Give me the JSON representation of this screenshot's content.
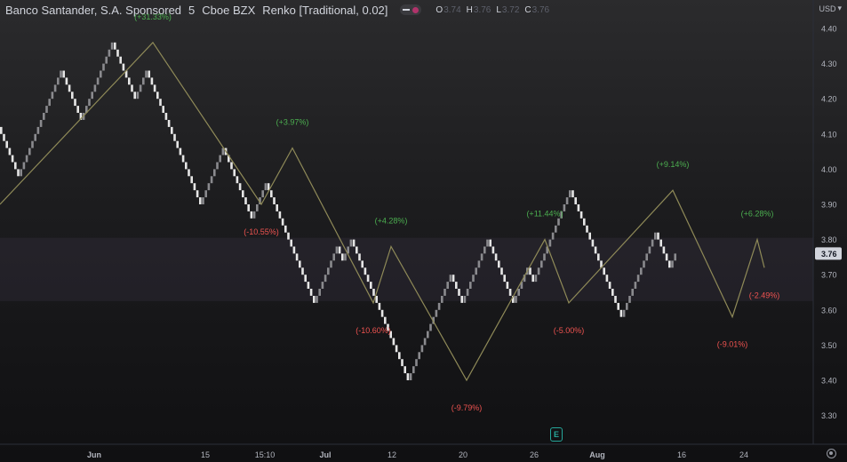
{
  "header": {
    "symbol": "Banco Santander, S.A. Sponsored",
    "interval": "5",
    "exchange": "Cboe BZX",
    "chart_style": "Renko [Traditional, 0.02]",
    "ohlc": [
      {
        "key": "O",
        "value": "3.74"
      },
      {
        "key": "H",
        "value": "3.76"
      },
      {
        "key": "L",
        "value": "3.72"
      },
      {
        "key": "C",
        "value": "3.76"
      }
    ]
  },
  "axis": {
    "currency": "USD",
    "currency_icon": "chevron-down-icon",
    "settings_icon": "gear-icon"
  },
  "earnings_badge": "E",
  "colors": {
    "up_brick": "#8a8a8e",
    "down_brick": "#e6e6e6",
    "zigzag": "#8f8a58",
    "positive": "#4caf50",
    "negative": "#ef5350",
    "price_label_bg": "#d1d4dc",
    "band": "#b08ad8"
  },
  "chart_data": {
    "type": "renko",
    "brick_size": 0.02,
    "y_ticks": [
      "4.40",
      "4.30",
      "4.20",
      "4.10",
      "4.00",
      "3.90",
      "3.80",
      "3.70",
      "3.60",
      "3.50",
      "3.40",
      "3.30"
    ],
    "ylim": [
      3.26,
      4.43
    ],
    "x_ticks": [
      "Jun",
      "15",
      "15:10",
      "Jul",
      "12",
      "20",
      "26",
      "Aug",
      "16",
      "24"
    ],
    "last_price": "3.76",
    "shaded_band": [
      3.625,
      3.805
    ],
    "path": [
      4.12,
      4.06,
      3.98,
      4.28,
      4.14,
      4.36,
      4.2,
      4.28,
      4.22,
      4.0,
      3.9,
      3.96,
      3.98,
      4.06,
      3.86,
      3.96,
      3.8,
      3.62,
      3.78,
      3.74,
      3.8,
      3.44,
      3.4,
      3.7,
      3.62,
      3.8,
      3.76,
      3.62,
      3.66,
      3.72,
      3.68,
      3.78,
      3.88,
      3.94,
      3.68,
      3.58,
      3.72,
      3.82,
      3.72,
      3.76
    ],
    "zigzag": [
      {
        "price": 3.9,
        "label": null
      },
      {
        "price": 4.36,
        "label": "(+31.33%)"
      },
      {
        "price": 3.9,
        "label": "(-10.55%)"
      },
      {
        "price": 4.06,
        "label": "(+3.97%)"
      },
      {
        "price": 3.62,
        "label": "(-10.60%)"
      },
      {
        "price": 3.78,
        "label": "(+4.28%)"
      },
      {
        "price": 3.4,
        "label": "(-9.79%)"
      },
      {
        "price": 3.8,
        "label": "(+11.44%)"
      },
      {
        "price": 3.62,
        "label": "(-5.00%)"
      },
      {
        "price": 3.94,
        "label": "(+9.14%)"
      },
      {
        "price": 3.58,
        "label": "(-9.01%)"
      },
      {
        "price": 3.8,
        "label": "(+6.28%)"
      },
      {
        "price": 3.72,
        "label": "(-2.49%)"
      }
    ]
  }
}
